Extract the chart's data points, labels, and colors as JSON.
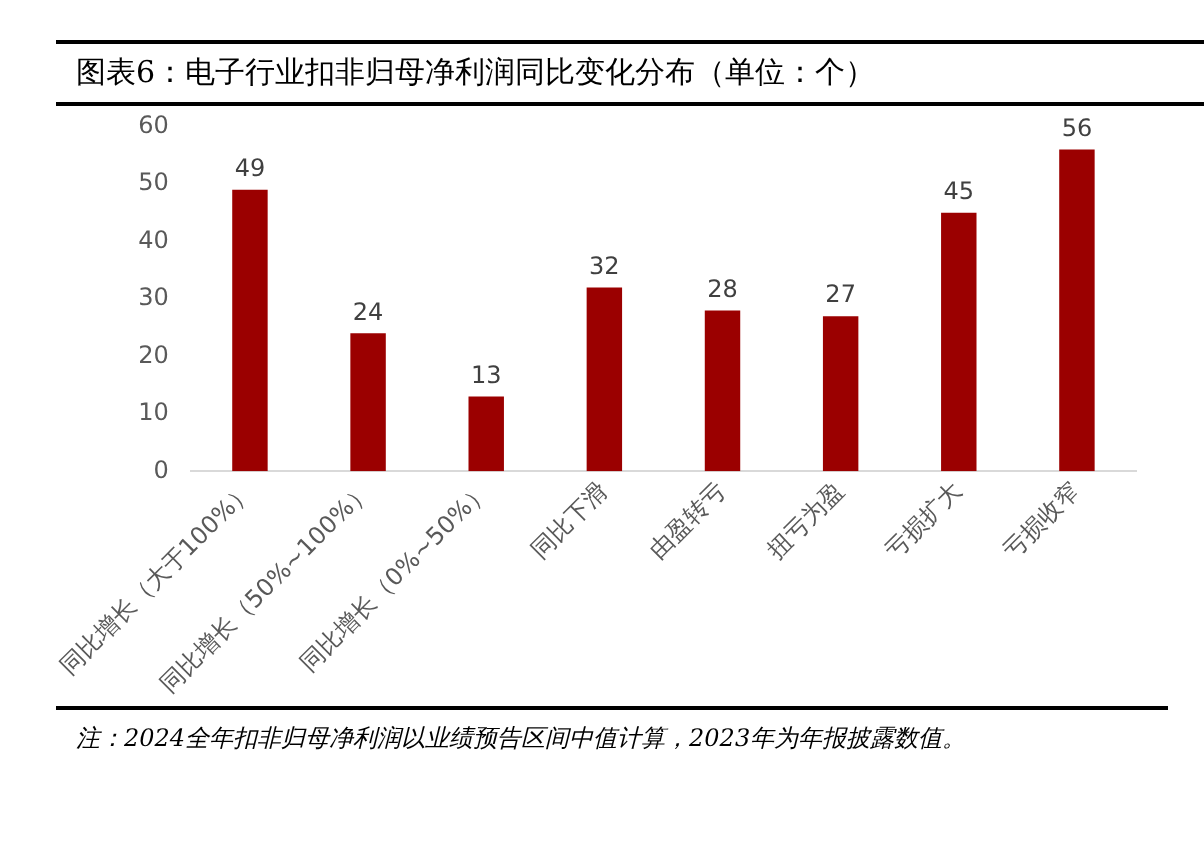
{
  "chart_data": {
    "type": "bar",
    "title": "图表6：电子行业扣非归母净利润同比变化分布（单位：个）",
    "categories": [
      "同比增长（大于100%）",
      "同比增长（50%~100%）",
      "同比增长（0%~50%）",
      "同比下滑",
      "由盈转亏",
      "扭亏为盈",
      "亏损扩大",
      "亏损收窄"
    ],
    "values": [
      49,
      24,
      13,
      32,
      28,
      27,
      45,
      56
    ],
    "color": "#9b0000",
    "ylim": [
      0,
      60
    ],
    "yticks": [
      0,
      10,
      20,
      30,
      40,
      50,
      60
    ],
    "grid": false,
    "legend": false,
    "data_labels": true,
    "annotations": [
      "注：2024全年扣非归母净利润以业绩预告区间中值计算，2023年为年报披露数值。"
    ]
  }
}
